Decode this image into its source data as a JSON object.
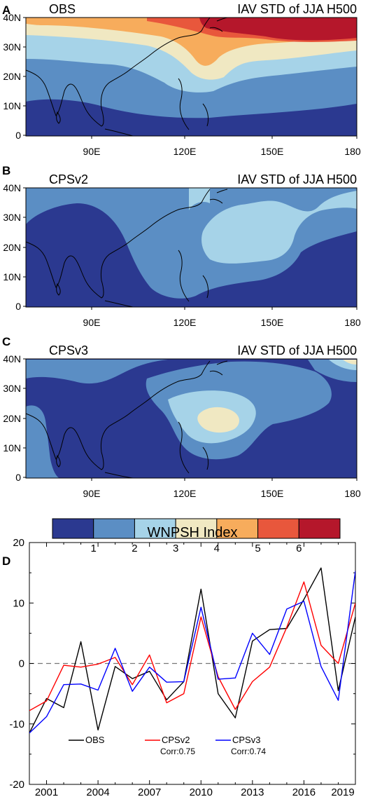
{
  "panels": [
    {
      "letter": "A",
      "name": "OBS",
      "title": "IAV STD of JJA H500",
      "ytick_labels": [
        "40N",
        "30N",
        "20N",
        "10N",
        "0"
      ],
      "xtick_labels": [
        "90E",
        "120E",
        "150E",
        "180"
      ]
    },
    {
      "letter": "B",
      "name": "CPSv2",
      "title": "IAV STD of JJA H500",
      "ytick_labels": [
        "40N",
        "30N",
        "20N",
        "10N",
        "0"
      ],
      "xtick_labels": [
        "90E",
        "120E",
        "150E",
        "180"
      ]
    },
    {
      "letter": "C",
      "name": "CPSv3",
      "title": "IAV STD of JJA H500",
      "ytick_labels": [
        "40N",
        "30N",
        "20N",
        "10N",
        "0"
      ],
      "xtick_labels": [
        "90E",
        "120E",
        "150E",
        "180"
      ]
    }
  ],
  "colorbar": {
    "colors": [
      "#2b3990",
      "#5b8ec4",
      "#a6d3e8",
      "#f0e8c2",
      "#f7ac5c",
      "#e8573c",
      "#b5172b"
    ],
    "labels": [
      "1",
      "2",
      "3",
      "4",
      "5",
      "6"
    ]
  },
  "line_panel": {
    "letter": "D",
    "legend": [
      {
        "name": "OBS",
        "corr": ""
      },
      {
        "name": "CPSv2",
        "corr": "Corr:0.75"
      },
      {
        "name": "CPSv3",
        "corr": "Corr:0.74"
      }
    ]
  },
  "chart_data": {
    "type": "line",
    "title": "WNPSH Index",
    "xlabel": "",
    "ylabel": "",
    "xlim": [
      2000,
      2019
    ],
    "ylim": [
      -20,
      20
    ],
    "xticks": [
      2001,
      2004,
      2007,
      2010,
      2013,
      2016,
      2019
    ],
    "yticks": [
      -20,
      -10,
      0,
      10,
      20
    ],
    "x": [
      2000,
      2001,
      2002,
      2003,
      2004,
      2005,
      2006,
      2007,
      2008,
      2009,
      2010,
      2011,
      2012,
      2013,
      2014,
      2015,
      2016,
      2017,
      2018,
      2019
    ],
    "series": [
      {
        "name": "OBS",
        "color": "#000000",
        "values": [
          -11.5,
          -5.8,
          -7.3,
          3.6,
          -11.0,
          -0.5,
          -2.5,
          -1.3,
          -6.0,
          -3.0,
          12.3,
          -5.0,
          -9.0,
          3.7,
          5.6,
          5.8,
          10.6,
          15.8,
          -4.5,
          7.7
        ]
      },
      {
        "name": "CPSv2",
        "color": "#ff0000",
        "values": [
          -7.8,
          -6.2,
          -0.3,
          -0.6,
          -0.1,
          1.0,
          -3.5,
          1.4,
          -6.5,
          -5.0,
          7.7,
          -2.2,
          -7.6,
          -3.0,
          -0.6,
          6.0,
          13.5,
          3.0,
          0.0,
          10.0
        ]
      },
      {
        "name": "CPSv3",
        "color": "#0000ff",
        "values": [
          -11.5,
          -8.8,
          -3.5,
          -3.4,
          -4.4,
          2.5,
          -4.6,
          -0.6,
          -3.1,
          -3.0,
          9.3,
          -2.6,
          -2.4,
          5.0,
          1.5,
          9.0,
          10.3,
          -0.5,
          -6.1,
          15.3
        ]
      }
    ],
    "zero_line": "dashed"
  }
}
